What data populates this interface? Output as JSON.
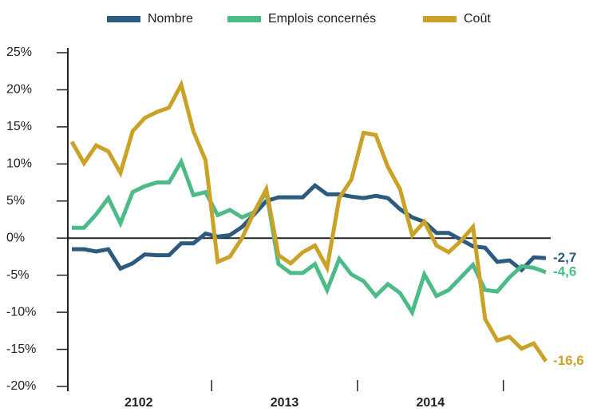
{
  "chart_data": {
    "type": "line",
    "categories": [
      null,
      null,
      null,
      null,
      null,
      "2102",
      null,
      null,
      null,
      null,
      null,
      null,
      null,
      null,
      null,
      null,
      null,
      "2013",
      null,
      null,
      null,
      null,
      null,
      null,
      null,
      null,
      null,
      null,
      null,
      "2014",
      null,
      null,
      null,
      null,
      null,
      null,
      null,
      null,
      null,
      null
    ],
    "series": [
      {
        "name": "Nombre",
        "color": "#2e5a7e",
        "values": [
          -1.5,
          -1.5,
          -1.8,
          -1.5,
          -4.1,
          -3.4,
          -2.2,
          -2.3,
          -2.3,
          -0.7,
          -0.7,
          0.6,
          0.2,
          0.4,
          1.5,
          3.2,
          5.0,
          5.5,
          5.5,
          5.5,
          7.1,
          5.9,
          5.9,
          5.6,
          5.4,
          5.7,
          5.4,
          3.9,
          2.8,
          2.2,
          0.7,
          0.7,
          -0.2,
          -1.1,
          -1.3,
          -3.2,
          -3.0,
          -4.3,
          -2.6,
          -2.7
        ],
        "value_labels": [
          null,
          null,
          null,
          null,
          null,
          null,
          null,
          null,
          null,
          null,
          null,
          null,
          null,
          null,
          null,
          null,
          null,
          null,
          null,
          null,
          null,
          null,
          null,
          null,
          null,
          null,
          null,
          null,
          null,
          null,
          null,
          null,
          null,
          null,
          null,
          null,
          null,
          null,
          null,
          "-2,7"
        ]
      },
      {
        "name": "Emplois concernés",
        "color": "#4cbb87",
        "values": [
          1.4,
          1.4,
          3.2,
          5.4,
          2.0,
          6.2,
          7.0,
          7.5,
          7.5,
          10.3,
          5.8,
          6.2,
          3.1,
          3.8,
          2.8,
          3.5,
          6.3,
          -3.5,
          -4.7,
          -4.7,
          -3.5,
          -7.0,
          -2.8,
          -4.9,
          -5.8,
          -7.8,
          -6.2,
          -7.4,
          -10.0,
          -4.9,
          -7.8,
          -7.0,
          -5.3,
          -3.6,
          -7.0,
          -7.2,
          -5.3,
          -3.8,
          -4.0,
          -4.6
        ],
        "value_labels": [
          null,
          null,
          null,
          null,
          null,
          null,
          null,
          null,
          null,
          null,
          null,
          null,
          null,
          null,
          null,
          null,
          null,
          null,
          null,
          null,
          null,
          null,
          null,
          null,
          null,
          null,
          null,
          null,
          null,
          null,
          null,
          null,
          null,
          null,
          null,
          null,
          null,
          null,
          null,
          "-4,6"
        ]
      },
      {
        "name": "Coût",
        "color": "#c9a227",
        "values": [
          13.0,
          10.1,
          12.5,
          11.7,
          8.8,
          14.4,
          16.2,
          17.0,
          17.6,
          20.7,
          14.4,
          10.5,
          -3.2,
          -2.5,
          0.0,
          3.5,
          6.6,
          -2.3,
          -3.4,
          -1.9,
          -1.0,
          -4.0,
          5.4,
          7.9,
          14.2,
          13.9,
          9.6,
          6.6,
          0.4,
          2.2,
          -1.0,
          -1.9,
          -0.4,
          1.5,
          -10.9,
          -13.8,
          -13.3,
          -14.9,
          -14.2,
          -16.6
        ],
        "value_labels": [
          null,
          null,
          null,
          null,
          null,
          null,
          null,
          null,
          null,
          null,
          null,
          null,
          null,
          null,
          null,
          null,
          null,
          null,
          null,
          null,
          null,
          null,
          null,
          null,
          null,
          null,
          null,
          null,
          null,
          null,
          null,
          null,
          null,
          null,
          null,
          null,
          null,
          null,
          null,
          "-16,6"
        ]
      }
    ],
    "ylim": [
      -20,
      25
    ],
    "yticks": [
      {
        "value": 25,
        "label": "25%"
      },
      {
        "value": 20,
        "label": "20%"
      },
      {
        "value": 15,
        "label": "15%"
      },
      {
        "value": 10,
        "label": "10%"
      },
      {
        "value": 5,
        "label": "5%"
      },
      {
        "value": 0,
        "label": "0%"
      },
      {
        "value": -5,
        "label": "-5%"
      },
      {
        "value": -10,
        "label": "-10%"
      },
      {
        "value": -15,
        "label": "-15%"
      },
      {
        "value": -20,
        "label": "-20%"
      }
    ],
    "legend": "top"
  }
}
